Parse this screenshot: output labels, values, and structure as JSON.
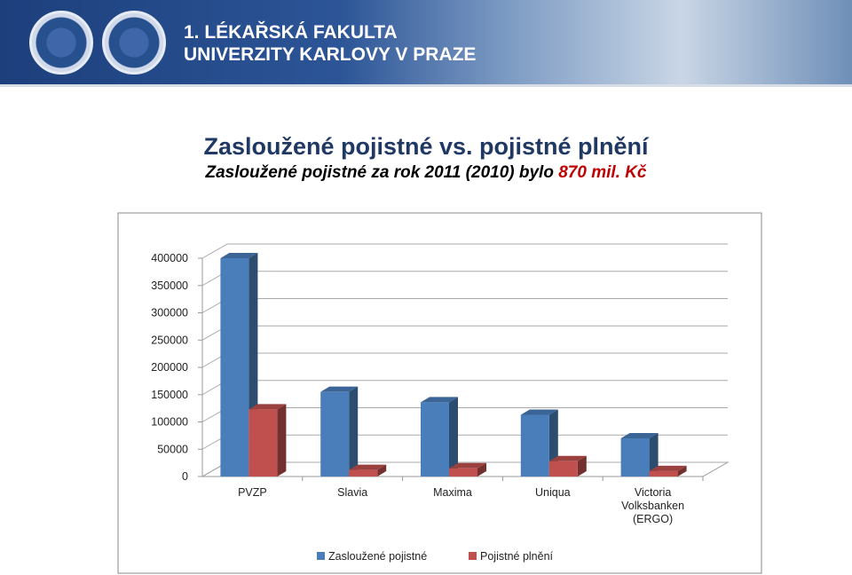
{
  "header": {
    "line1": "1. LÉKAŘSKÁ FAKULTA",
    "line2": "UNIVERZITY KARLOVY V PRAZE"
  },
  "slide": {
    "title": "Zasloužené pojistné vs. pojistné plnění",
    "subtitle": "Zasloužené pojistné za rok 2011 (2010) bylo",
    "highlight": "870 mil. Kč"
  },
  "chart_data": {
    "type": "bar3d",
    "categories": [
      "PVZP",
      "Slavia",
      "Maxima",
      "Uniqua",
      "Victoria Volksbanken (ERGO)"
    ],
    "series": [
      {
        "name": "Zasloužené pojistné",
        "color": "#4a7ebb",
        "values": [
          400000,
          155000,
          136000,
          113000,
          70000
        ]
      },
      {
        "name": "Pojistné plnění",
        "color": "#c0504d",
        "values": [
          123000,
          12000,
          15000,
          28000,
          10000
        ]
      }
    ],
    "ylim": [
      0,
      400000
    ],
    "yticks": [
      0,
      50000,
      100000,
      150000,
      200000,
      250000,
      300000,
      350000,
      400000
    ],
    "grid": true,
    "legend": "bottom"
  }
}
